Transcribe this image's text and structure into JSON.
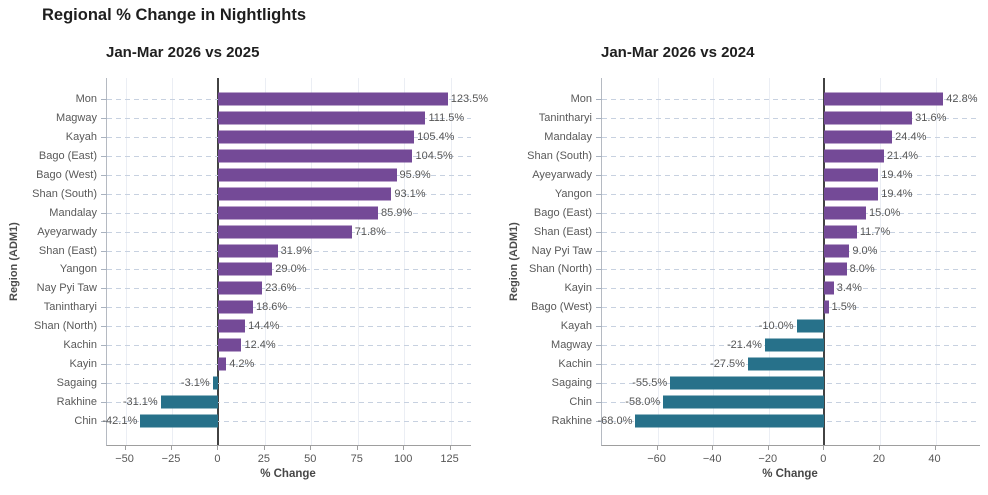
{
  "page_title": "Regional % Change in Nightlights",
  "colors": {
    "positive_bar": "#744a97",
    "negative_bar": "#27718a",
    "zero_line": "#424242",
    "gridline_dashed": "#c7d1e0",
    "text_gray": "#595959"
  },
  "chart_data": [
    {
      "type": "bar",
      "orientation": "horizontal",
      "title": "Jan-Mar 2026 vs 2025",
      "xlabel": "% Change",
      "ylabel": "Region (ADM1)",
      "xlim": [
        -60,
        136
      ],
      "xticks": [
        -50,
        -25,
        0,
        25,
        50,
        75,
        100,
        125
      ],
      "xtick_labels": [
        "−50",
        "−25",
        "0",
        "25",
        "50",
        "75",
        "100",
        "125"
      ],
      "grid": true,
      "legend": false,
      "categories": [
        "Mon",
        "Magway",
        "Kayah",
        "Bago (East)",
        "Bago (West)",
        "Shan (South)",
        "Mandalay",
        "Ayeyarwady",
        "Shan (East)",
        "Yangon",
        "Nay Pyi Taw",
        "Tanintharyi",
        "Shan (North)",
        "Kachin",
        "Kayin",
        "Sagaing",
        "Rakhine",
        "Chin"
      ],
      "values": [
        123.5,
        111.5,
        105.4,
        104.5,
        95.9,
        93.1,
        85.9,
        71.8,
        31.9,
        29.0,
        23.6,
        18.6,
        14.4,
        12.4,
        4.2,
        -3.1,
        -31.1,
        -42.1
      ],
      "value_labels": [
        "123.5%",
        "111.5%",
        "105.4%",
        "104.5%",
        "95.9%",
        "93.1%",
        "85.9%",
        "71.8%",
        "31.9%",
        "29.0%",
        "23.6%",
        "18.6%",
        "14.4%",
        "12.4%",
        "4.2%",
        "-3.1%",
        "-31.1%",
        "-42.1%"
      ]
    },
    {
      "type": "bar",
      "orientation": "horizontal",
      "title": "Jan-Mar 2026 vs 2024",
      "xlabel": "% Change",
      "ylabel": "Region (ADM1)",
      "xlim": [
        -80,
        56
      ],
      "xticks": [
        -60,
        -40,
        -20,
        0,
        20,
        40
      ],
      "xtick_labels": [
        "−60",
        "−40",
        "−20",
        "0",
        "20",
        "40"
      ],
      "grid": true,
      "legend": false,
      "categories": [
        "Mon",
        "Tanintharyi",
        "Mandalay",
        "Shan (South)",
        "Ayeyarwady",
        "Yangon",
        "Bago (East)",
        "Shan (East)",
        "Nay Pyi Taw",
        "Shan (North)",
        "Kayin",
        "Bago (West)",
        "Kayah",
        "Magway",
        "Kachin",
        "Sagaing",
        "Chin",
        "Rakhine"
      ],
      "values": [
        42.8,
        31.6,
        24.4,
        21.4,
        19.4,
        19.4,
        15.0,
        11.7,
        9.0,
        8.0,
        3.4,
        1.5,
        -10.0,
        -21.4,
        -27.5,
        -55.5,
        -58.0,
        -68.0
      ],
      "value_labels": [
        "42.8%",
        "31.6%",
        "24.4%",
        "21.4%",
        "19.4%",
        "19.4%",
        "15.0%",
        "11.7%",
        "9.0%",
        "8.0%",
        "3.4%",
        "1.5%",
        "-10.0%",
        "-21.4%",
        "-27.5%",
        "-55.5%",
        "-58.0%",
        "-68.0%"
      ]
    }
  ]
}
